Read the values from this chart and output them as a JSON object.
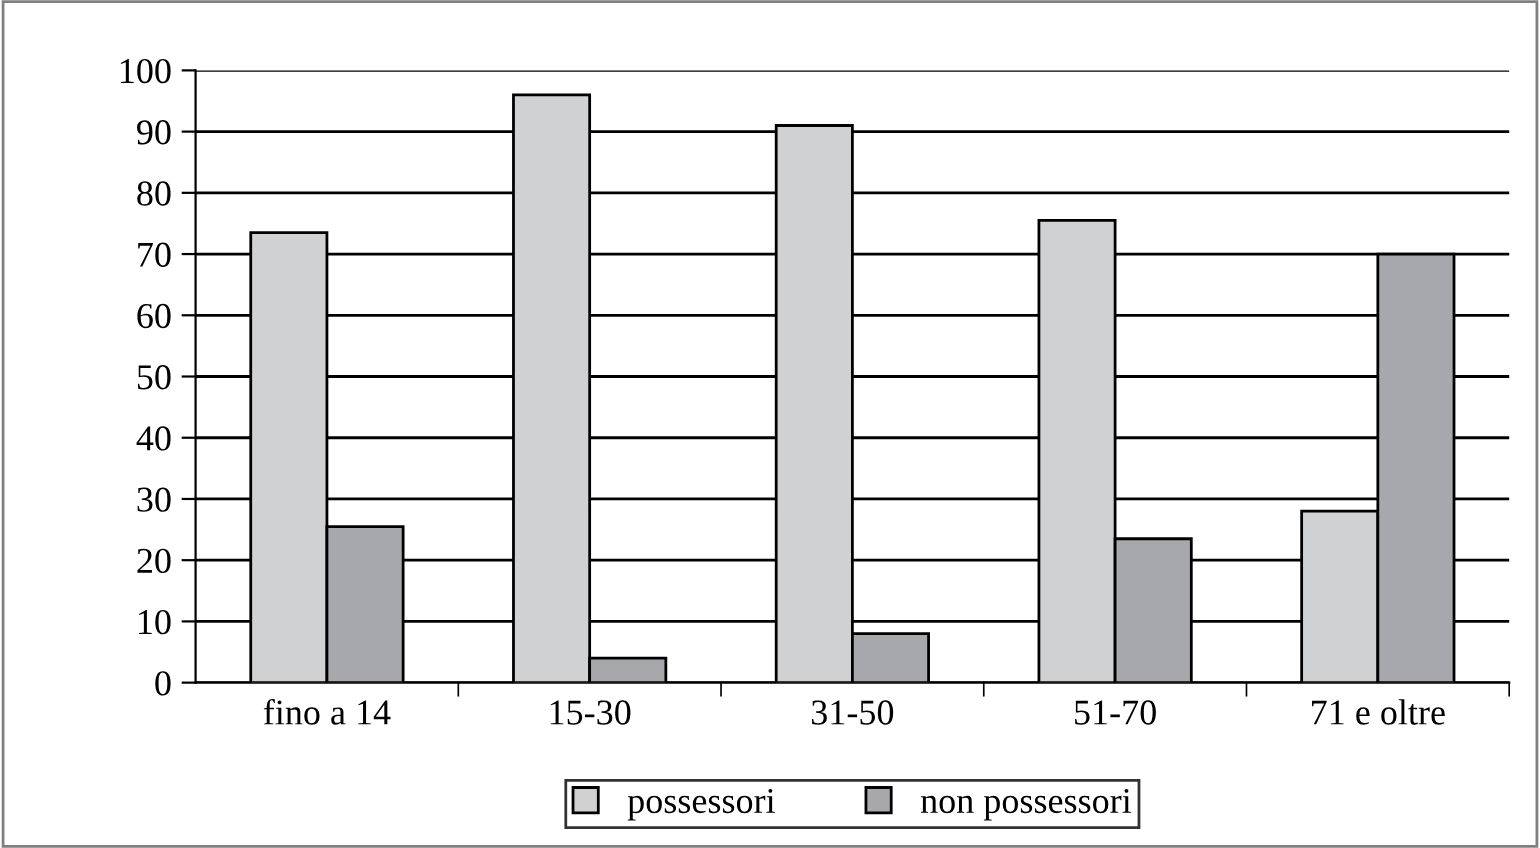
{
  "chart_data": {
    "type": "bar",
    "categories": [
      "fino a 14",
      "15-30",
      "31-50",
      "51-70",
      "71 e oltre"
    ],
    "series": [
      {
        "name": "possessori",
        "color": "#d0d1d3",
        "values": [
          73.5,
          96,
          91,
          75.5,
          28
        ]
      },
      {
        "name": "non possessori",
        "color": "#a7a8ab",
        "values": [
          25.5,
          4,
          8,
          23.5,
          70
        ]
      }
    ],
    "ylim": [
      0,
      100
    ],
    "yticks": [
      0,
      10,
      20,
      30,
      40,
      50,
      60,
      70,
      80,
      90,
      100
    ],
    "grid": "y",
    "legend": "bottom"
  }
}
